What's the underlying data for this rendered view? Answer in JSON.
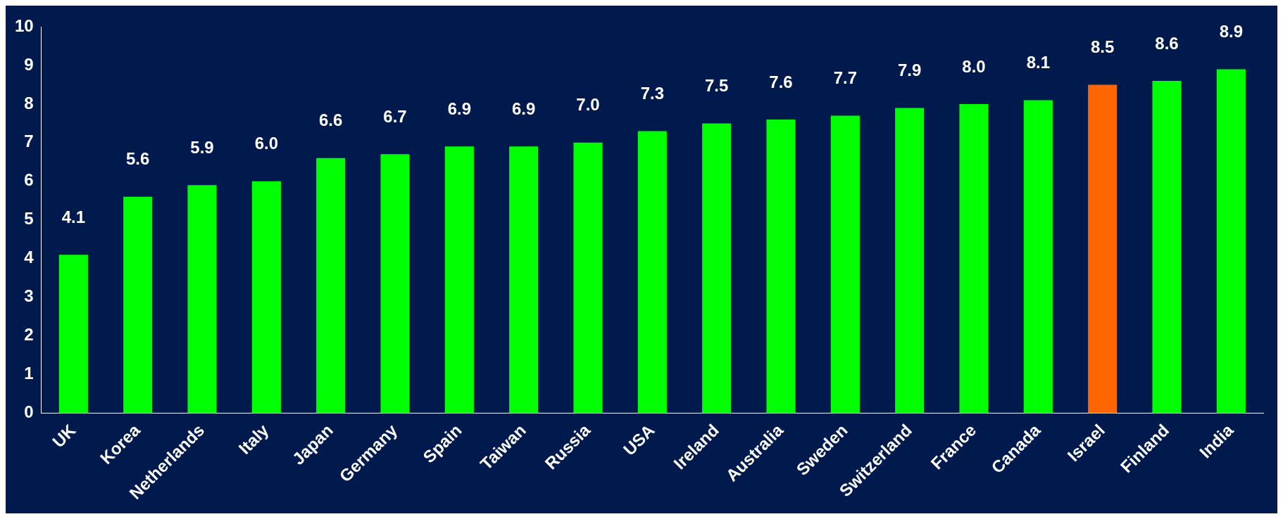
{
  "chart_data": {
    "type": "bar",
    "categories": [
      "UK",
      "Korea",
      "Netherlands",
      "Italy",
      "Japan",
      "Germany",
      "Spain",
      "Taiwan",
      "Russia",
      "USA",
      "Ireland",
      "Australia",
      "Sweden",
      "Switzerland",
      "France",
      "Canada",
      "Israel",
      "Finland",
      "India"
    ],
    "values": [
      4.1,
      5.6,
      5.9,
      6.0,
      6.6,
      6.7,
      6.9,
      6.9,
      7.0,
      7.3,
      7.5,
      7.6,
      7.7,
      7.9,
      8.0,
      8.1,
      8.5,
      8.6,
      8.9
    ],
    "colors": [
      "#00ff00",
      "#00ff00",
      "#00ff00",
      "#00ff00",
      "#00ff00",
      "#00ff00",
      "#00ff00",
      "#00ff00",
      "#00ff00",
      "#00ff00",
      "#00ff00",
      "#00ff00",
      "#00ff00",
      "#00ff00",
      "#00ff00",
      "#00ff00",
      "#ff6600",
      "#00ff00",
      "#00ff00"
    ],
    "value_labels": [
      "4.1",
      "5.6",
      "5.9",
      "6.0",
      "6.6",
      "6.7",
      "6.9",
      "6.9",
      "7.0",
      "7.3",
      "7.5",
      "7.6",
      "7.7",
      "7.9",
      "8.0",
      "8.1",
      "8.5",
      "8.6",
      "8.9"
    ],
    "ylim": [
      0,
      10
    ],
    "yticks": [
      0,
      1,
      2,
      3,
      4,
      5,
      6,
      7,
      8,
      9,
      10
    ],
    "grid": false,
    "legend": false
  }
}
